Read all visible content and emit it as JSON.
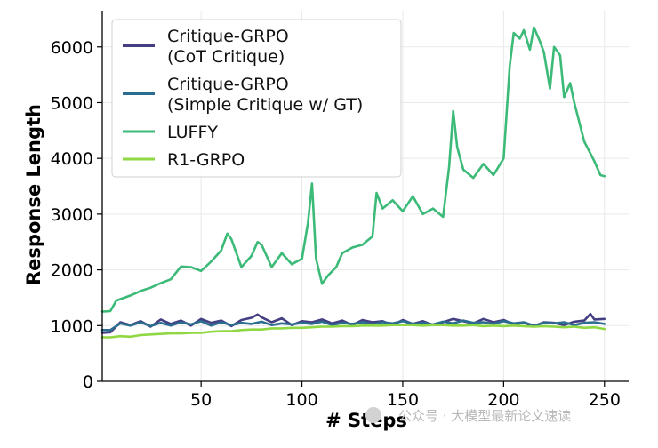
{
  "chart_data": {
    "type": "line",
    "xlabel": "# Steps",
    "ylabel": "Response Length",
    "xlim": [
      1,
      262
    ],
    "ylim": [
      0,
      6650
    ],
    "xticks": [
      50,
      100,
      150,
      200,
      250
    ],
    "yticks": [
      0,
      1000,
      2000,
      3000,
      4000,
      5000,
      6000
    ],
    "grid": true,
    "legend_position": "top-left",
    "series": [
      {
        "name": "Critique-GRPO\n(CoT Critique)",
        "color": "#433f82",
        "x": [
          1,
          5,
          10,
          15,
          20,
          25,
          30,
          35,
          40,
          45,
          50,
          55,
          60,
          65,
          70,
          75,
          78,
          80,
          85,
          90,
          95,
          100,
          105,
          110,
          115,
          120,
          125,
          130,
          135,
          140,
          145,
          150,
          155,
          160,
          165,
          170,
          175,
          180,
          185,
          190,
          195,
          200,
          205,
          210,
          215,
          220,
          225,
          230,
          235,
          240,
          243,
          245,
          250
        ],
        "y": [
          870,
          880,
          1060,
          1010,
          1080,
          980,
          1110,
          1030,
          1090,
          1000,
          1120,
          1050,
          1090,
          990,
          1100,
          1140,
          1200,
          1150,
          1060,
          1130,
          1010,
          1080,
          1060,
          1110,
          1040,
          1090,
          1010,
          1100,
          1060,
          1080,
          1010,
          1100,
          1030,
          1080,
          1010,
          1060,
          1120,
          1080,
          1040,
          1120,
          1060,
          1100,
          1020,
          1050,
          990,
          1060,
          1050,
          1010,
          1070,
          1090,
          1210,
          1110,
          1120
        ]
      },
      {
        "name": "Critique-GRPO\n(Simple Critique w/ GT)",
        "color": "#2b6d8e",
        "x": [
          1,
          5,
          10,
          15,
          20,
          25,
          30,
          35,
          40,
          45,
          50,
          55,
          60,
          65,
          70,
          75,
          80,
          85,
          90,
          95,
          100,
          105,
          110,
          115,
          120,
          125,
          130,
          135,
          140,
          145,
          150,
          155,
          160,
          165,
          170,
          175,
          180,
          185,
          190,
          195,
          200,
          205,
          210,
          215,
          220,
          225,
          230,
          235,
          240,
          245,
          250
        ],
        "y": [
          920,
          920,
          1040,
          1000,
          1060,
          990,
          1050,
          1000,
          1060,
          1020,
          1080,
          1000,
          1060,
          1010,
          1050,
          1030,
          1070,
          1010,
          1040,
          1020,
          1050,
          1030,
          1070,
          1010,
          1050,
          1030,
          1060,
          1020,
          1060,
          1040,
          1080,
          1030,
          1050,
          1020,
          1070,
          1040,
          1090,
          1050,
          1060,
          1030,
          1080,
          1040,
          1060,
          1000,
          1050,
          1040,
          1060,
          1010,
          1050,
          1060,
          1030
        ]
      },
      {
        "name": "LUFFY",
        "color": "#3cba78",
        "x": [
          1,
          5,
          8,
          12,
          15,
          20,
          25,
          30,
          35,
          40,
          45,
          50,
          55,
          60,
          63,
          65,
          70,
          75,
          78,
          80,
          85,
          90,
          95,
          100,
          103,
          105,
          107,
          110,
          113,
          117,
          120,
          125,
          130,
          135,
          137,
          140,
          145,
          150,
          155,
          160,
          165,
          170,
          173,
          175,
          177,
          180,
          185,
          190,
          195,
          200,
          203,
          205,
          208,
          210,
          213,
          215,
          218,
          220,
          223,
          225,
          228,
          230,
          233,
          235,
          240,
          245,
          248,
          250
        ],
        "y": [
          1250,
          1260,
          1450,
          1500,
          1540,
          1620,
          1680,
          1760,
          1830,
          2060,
          2050,
          1980,
          2150,
          2350,
          2650,
          2550,
          2050,
          2250,
          2500,
          2450,
          2050,
          2300,
          2100,
          2200,
          2850,
          3550,
          2200,
          1750,
          1900,
          2050,
          2300,
          2400,
          2450,
          2600,
          3380,
          3100,
          3250,
          3050,
          3320,
          3000,
          3100,
          2950,
          3850,
          4850,
          4200,
          3800,
          3650,
          3900,
          3700,
          4000,
          5650,
          6250,
          6150,
          6300,
          5950,
          6350,
          6100,
          5900,
          5250,
          6000,
          5850,
          5100,
          5350,
          5000,
          4300,
          3950,
          3700,
          3680
        ]
      },
      {
        "name": "R1-GRPO",
        "color": "#90d744",
        "x": [
          1,
          5,
          10,
          15,
          20,
          25,
          30,
          35,
          40,
          45,
          50,
          55,
          60,
          65,
          70,
          75,
          80,
          85,
          90,
          95,
          100,
          105,
          110,
          115,
          120,
          125,
          130,
          135,
          140,
          145,
          150,
          155,
          160,
          165,
          170,
          175,
          180,
          185,
          190,
          195,
          200,
          205,
          210,
          215,
          220,
          225,
          230,
          235,
          240,
          245,
          250
        ],
        "y": [
          790,
          790,
          810,
          800,
          830,
          840,
          850,
          860,
          860,
          870,
          870,
          890,
          900,
          900,
          920,
          930,
          930,
          950,
          950,
          960,
          960,
          970,
          980,
          980,
          990,
          990,
          1000,
          1000,
          1000,
          1010,
          1010,
          1010,
          1000,
          1010,
          1010,
          1000,
          1000,
          1010,
          990,
          1000,
          990,
          1000,
          990,
          980,
          990,
          980,
          970,
          980,
          960,
          970,
          940
        ]
      }
    ]
  },
  "watermark": {
    "text": "公众号 · 大模型最新论文速读"
  }
}
